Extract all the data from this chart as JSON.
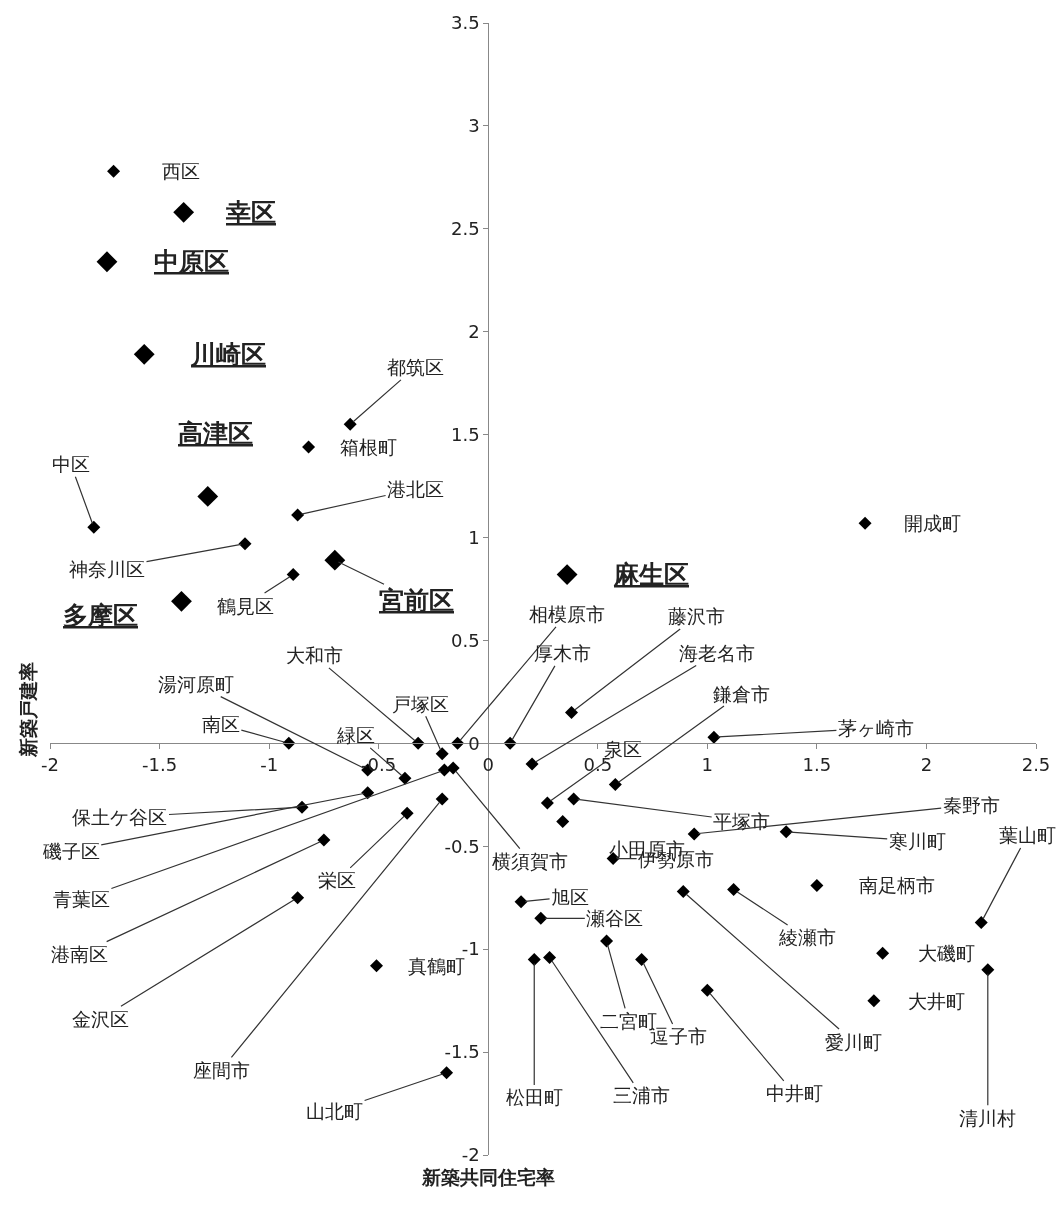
{
  "chart_data": {
    "type": "scatter",
    "xlabel": "新築共同住宅率",
    "ylabel": "新築戸建率",
    "xlim": [
      -2,
      2.5
    ],
    "xticks": [
      -2,
      -1.5,
      -1,
      -0.5,
      0,
      0.5,
      1,
      1.5,
      2,
      2.5
    ],
    "ylim": [
      -2,
      3.5
    ],
    "yticks": [
      -2,
      -1.5,
      -1,
      -0.5,
      0,
      0.5,
      1,
      1.5,
      2,
      2.5,
      3,
      3.5
    ],
    "marker": "diamond",
    "series": [
      {
        "color": "#000000",
        "x": [
          -1.71,
          -0.63,
          -0.82,
          -1.8,
          -0.87,
          -1.11,
          -0.89,
          1.72,
          -0.14,
          0.38,
          0.1,
          0.2,
          0.58,
          1.03,
          0.27,
          0.39,
          0.34,
          0.94,
          1.36,
          0.57,
          -0.16,
          -0.32,
          -0.21,
          -0.55,
          -0.38,
          -0.91,
          -0.85,
          -0.55,
          -0.2,
          -0.75,
          -0.87,
          -0.21,
          -0.37,
          -0.19,
          -0.51,
          0.15,
          0.24,
          0.54,
          0.21,
          0.28,
          0.7,
          1.0,
          0.89,
          1.12,
          1.5,
          2.25,
          1.8,
          1.76,
          2.28
        ],
        "values": [
          2.78,
          1.55,
          1.44,
          1.05,
          1.11,
          0.97,
          0.82,
          1.07,
          0.0,
          0.15,
          0.0,
          -0.1,
          -0.2,
          0.03,
          -0.29,
          -0.27,
          -0.38,
          -0.44,
          -0.43,
          -0.56,
          -0.12,
          0.0,
          -0.05,
          -0.13,
          -0.17,
          0.0,
          -0.31,
          -0.24,
          -0.13,
          -0.47,
          -0.75,
          -0.27,
          -0.34,
          -1.6,
          -1.08,
          -0.77,
          -0.85,
          -0.96,
          -1.05,
          -1.04,
          -1.05,
          -1.2,
          -0.72,
          -0.71,
          -0.69,
          -0.87,
          -1.02,
          -1.25,
          -1.1
        ]
      },
      {
        "color": "#000000",
        "x": [
          -1.39,
          -1.74,
          -1.57,
          -1.28,
          -0.7,
          0.36,
          -1.4
        ],
        "values": [
          2.58,
          2.34,
          1.89,
          1.2,
          0.89,
          0.82,
          0.69
        ]
      }
    ],
    "annotations": [
      {
        "text": "西区",
        "x": -1.71,
        "y": 2.78
      },
      {
        "text": "幸区",
        "x": -1.39,
        "y": 2.58
      },
      {
        "text": "中原区",
        "x": -1.74,
        "y": 2.34
      },
      {
        "text": "川崎区",
        "x": -1.57,
        "y": 1.89
      },
      {
        "text": "高津区",
        "x": -1.28,
        "y": 1.2
      },
      {
        "text": "宮前区",
        "x": -0.7,
        "y": 0.89
      },
      {
        "text": "麻生区",
        "x": 0.36,
        "y": 0.82
      },
      {
        "text": "多摩区",
        "x": -1.4,
        "y": 0.69
      },
      {
        "text": "都筑区",
        "x": -0.63,
        "y": 1.55
      },
      {
        "text": "箱根町",
        "x": -0.82,
        "y": 1.44
      },
      {
        "text": "中区",
        "x": -1.8,
        "y": 1.05
      },
      {
        "text": "港北区",
        "x": -0.87,
        "y": 1.11
      },
      {
        "text": "神奈川区",
        "x": -1.11,
        "y": 0.97
      },
      {
        "text": "鶴見区",
        "x": -0.89,
        "y": 0.82
      },
      {
        "text": "開成町",
        "x": 1.72,
        "y": 1.07
      },
      {
        "text": "相模原市",
        "x": -0.14,
        "y": 0.0
      },
      {
        "text": "藤沢市",
        "x": 0.38,
        "y": 0.15
      },
      {
        "text": "厚木市",
        "x": 0.1,
        "y": 0.0
      },
      {
        "text": "海老名市",
        "x": 0.2,
        "y": -0.1
      },
      {
        "text": "鎌倉市",
        "x": 0.58,
        "y": -0.2
      },
      {
        "text": "茅ヶ崎市",
        "x": 1.03,
        "y": 0.03
      },
      {
        "text": "泉区",
        "x": 0.27,
        "y": -0.29
      },
      {
        "text": "平塚市",
        "x": 0.39,
        "y": -0.27
      },
      {
        "text": "小田原市",
        "x": 0.34,
        "y": -0.38
      },
      {
        "text": "秦野市",
        "x": 0.94,
        "y": -0.44
      },
      {
        "text": "寒川町",
        "x": 1.36,
        "y": -0.43
      },
      {
        "text": "伊勢原市",
        "x": 0.57,
        "y": -0.56
      },
      {
        "text": "横須賀市",
        "x": -0.16,
        "y": -0.12
      },
      {
        "text": "大和市",
        "x": -0.32,
        "y": 0.0
      },
      {
        "text": "戸塚区",
        "x": -0.21,
        "y": -0.05
      },
      {
        "text": "湯河原町",
        "x": -0.55,
        "y": -0.13
      },
      {
        "text": "緑区",
        "x": -0.38,
        "y": -0.17
      },
      {
        "text": "南区",
        "x": -0.91,
        "y": 0.0
      },
      {
        "text": "保土ケ谷区",
        "x": -0.85,
        "y": -0.31
      },
      {
        "text": "磯子区",
        "x": -0.55,
        "y": -0.24
      },
      {
        "text": "青葉区",
        "x": -0.2,
        "y": -0.13
      },
      {
        "text": "港南区",
        "x": -0.75,
        "y": -0.47
      },
      {
        "text": "金沢区",
        "x": -0.87,
        "y": -0.75
      },
      {
        "text": "座間市",
        "x": -0.21,
        "y": -0.27
      },
      {
        "text": "栄区",
        "x": -0.37,
        "y": -0.34
      },
      {
        "text": "山北町",
        "x": -0.19,
        "y": -1.6
      },
      {
        "text": "真鶴町",
        "x": -0.51,
        "y": -1.08
      },
      {
        "text": "旭区",
        "x": 0.15,
        "y": -0.77
      },
      {
        "text": "瀬谷区",
        "x": 0.24,
        "y": -0.85
      },
      {
        "text": "二宮町",
        "x": 0.54,
        "y": -0.96
      },
      {
        "text": "松田町",
        "x": 0.21,
        "y": -1.05
      },
      {
        "text": "三浦市",
        "x": 0.28,
        "y": -1.04
      },
      {
        "text": "逗子市",
        "x": 0.7,
        "y": -1.05
      },
      {
        "text": "中井町",
        "x": 1.0,
        "y": -1.2
      },
      {
        "text": "愛川町",
        "x": 0.89,
        "y": -0.72
      },
      {
        "text": "綾瀬市",
        "x": 1.12,
        "y": -0.71
      },
      {
        "text": "南足柄市",
        "x": 1.5,
        "y": -0.69
      },
      {
        "text": "葉山町",
        "x": 2.25,
        "y": -0.87
      },
      {
        "text": "大磯町",
        "x": 1.8,
        "y": -1.02
      },
      {
        "text": "大井町",
        "x": 1.76,
        "y": -1.25
      },
      {
        "text": "清川村",
        "x": 2.28,
        "y": -1.1
      }
    ]
  }
}
